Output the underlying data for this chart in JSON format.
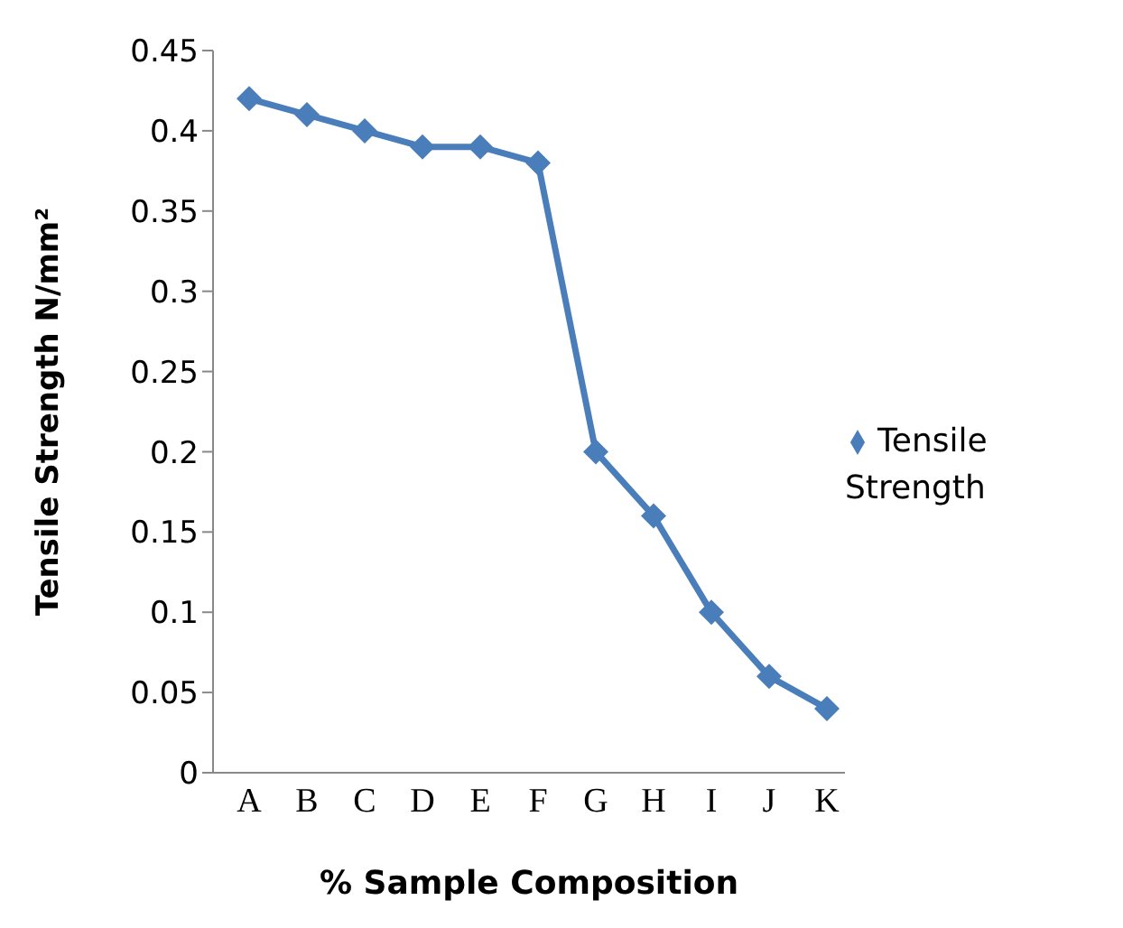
{
  "chart_data": {
    "type": "line",
    "xlabel": "% Sample Composition",
    "ylabel": "Tensile Strength N/mm²",
    "categories": [
      "A",
      "B",
      "C",
      "D",
      "E",
      "F",
      "G",
      "H",
      "I",
      "J",
      "K"
    ],
    "series": [
      {
        "name": "Tensile Strength",
        "color": "#4a7ebb",
        "values": [
          0.42,
          0.41,
          0.4,
          0.39,
          0.39,
          0.38,
          0.2,
          0.16,
          0.1,
          0.06,
          0.04
        ]
      }
    ],
    "ylim": [
      0,
      0.45
    ],
    "yticks": [
      0,
      0.05,
      0.1,
      0.15,
      0.2,
      0.25,
      0.3,
      0.35,
      0.4,
      0.45
    ],
    "grid": false,
    "legend": "right",
    "marker": "diamond",
    "line_style": "solid"
  }
}
